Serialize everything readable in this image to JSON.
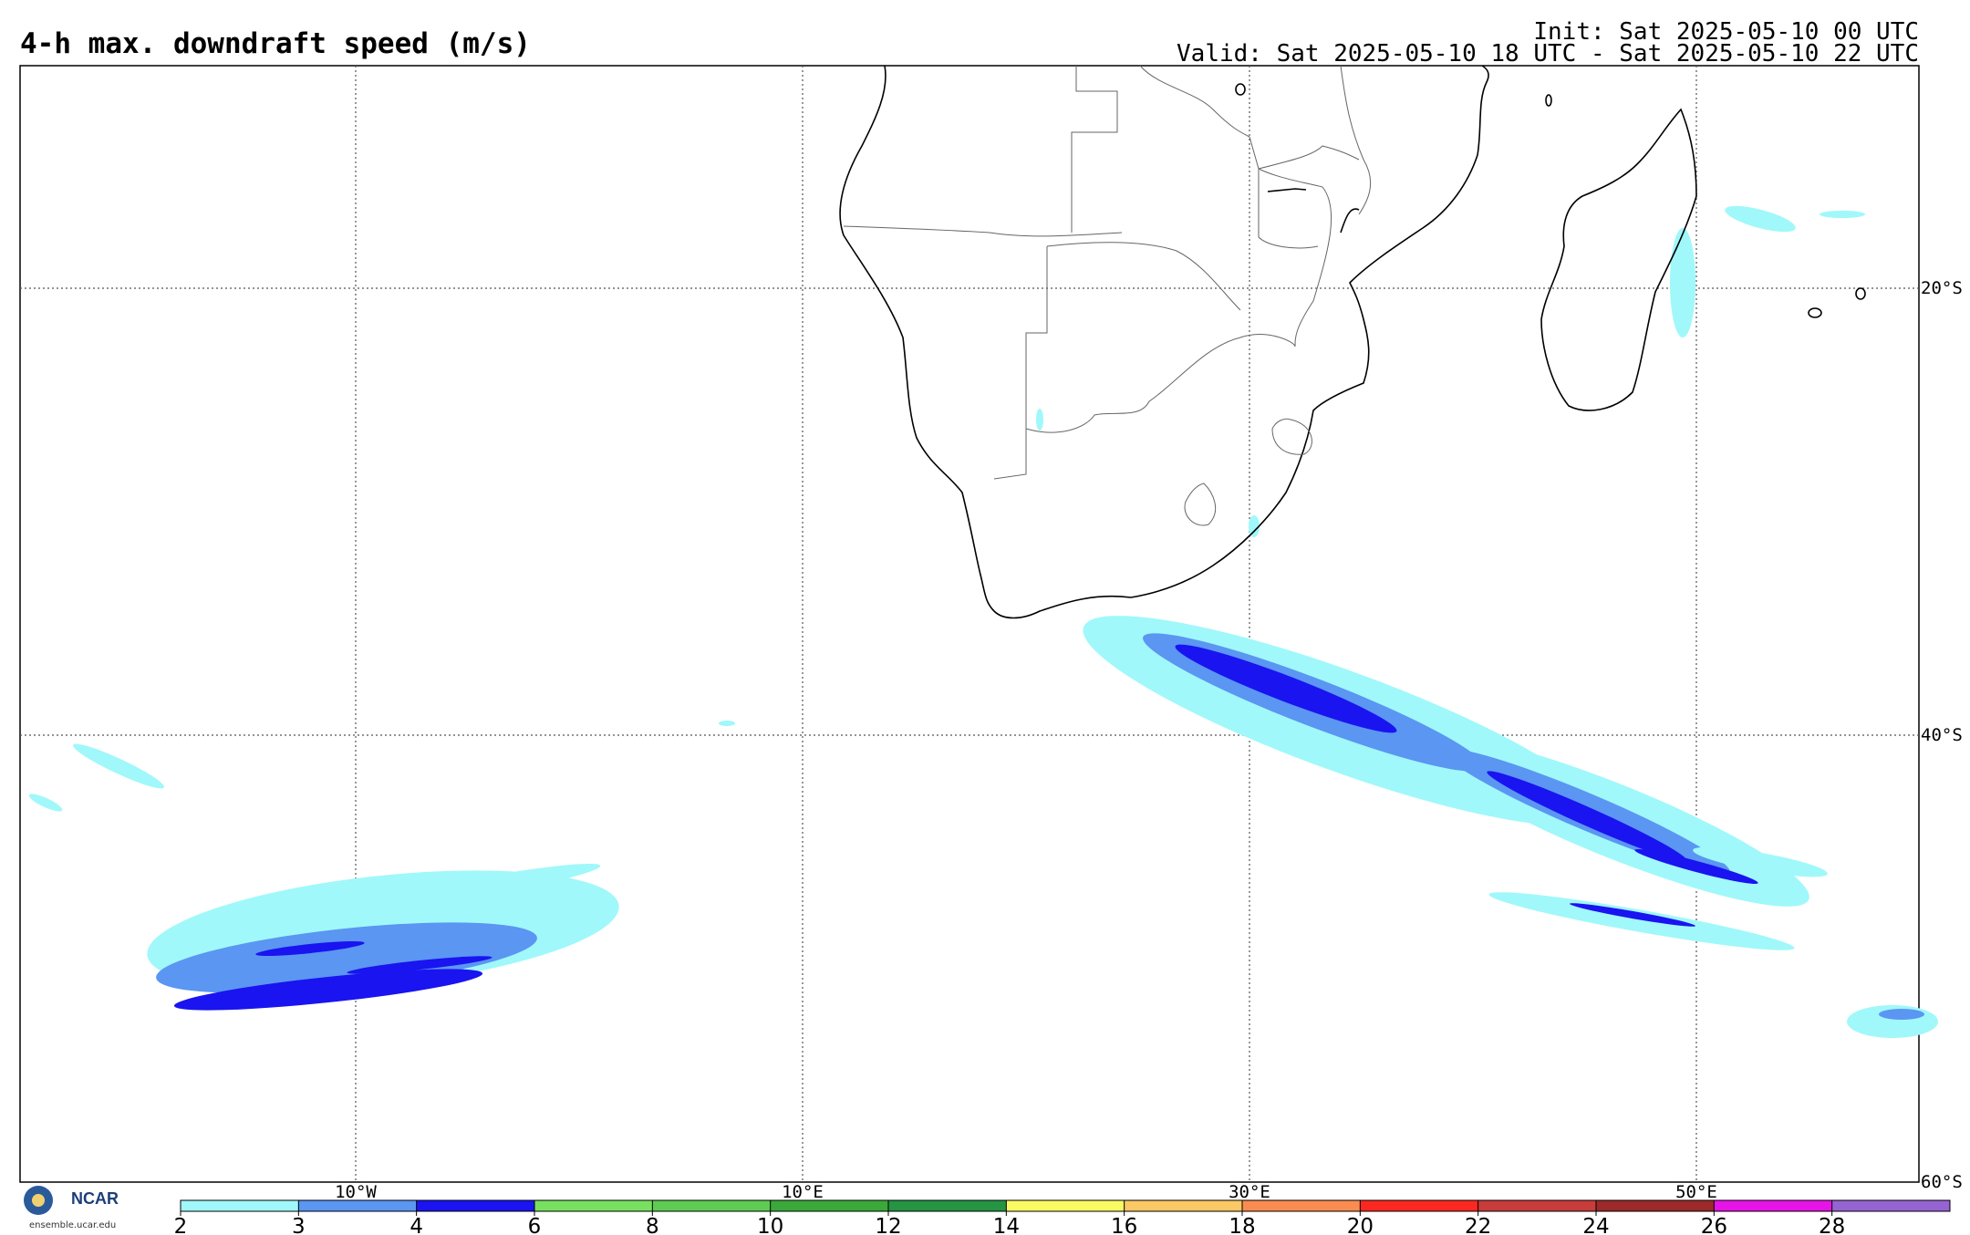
{
  "header": {
    "title": "4-h max. downdraft speed (m/s)",
    "init": "Init: Sat 2025-05-10 00 UTC",
    "valid": "Valid: Sat 2025-05-10 18 UTC - Sat 2025-05-10 22 UTC"
  },
  "map": {
    "lat_labels": [
      "20°S",
      "40°S",
      "60°S"
    ],
    "lon_labels": [
      "10°W",
      "10°E",
      "30°E",
      "50°E"
    ]
  },
  "colorbar": {
    "ticks": [
      "2",
      "3",
      "4",
      "6",
      "8",
      "10",
      "12",
      "14",
      "16",
      "18",
      "20",
      "22",
      "24",
      "26",
      "28"
    ],
    "colors": [
      "#a0f8fa",
      "#5a96f2",
      "#1a14f0",
      "#78e060",
      "#5ecc52",
      "#3aa83a",
      "#259443",
      "#fafa64",
      "#fac864",
      "#fa8c50",
      "#fa2820",
      "#c83c3c",
      "#9c2a2a",
      "#e614e6",
      "#9664d2"
    ]
  },
  "logo": {
    "org": "NCAR",
    "seal": "NSF",
    "url": "ensemble.ucar.edu"
  }
}
